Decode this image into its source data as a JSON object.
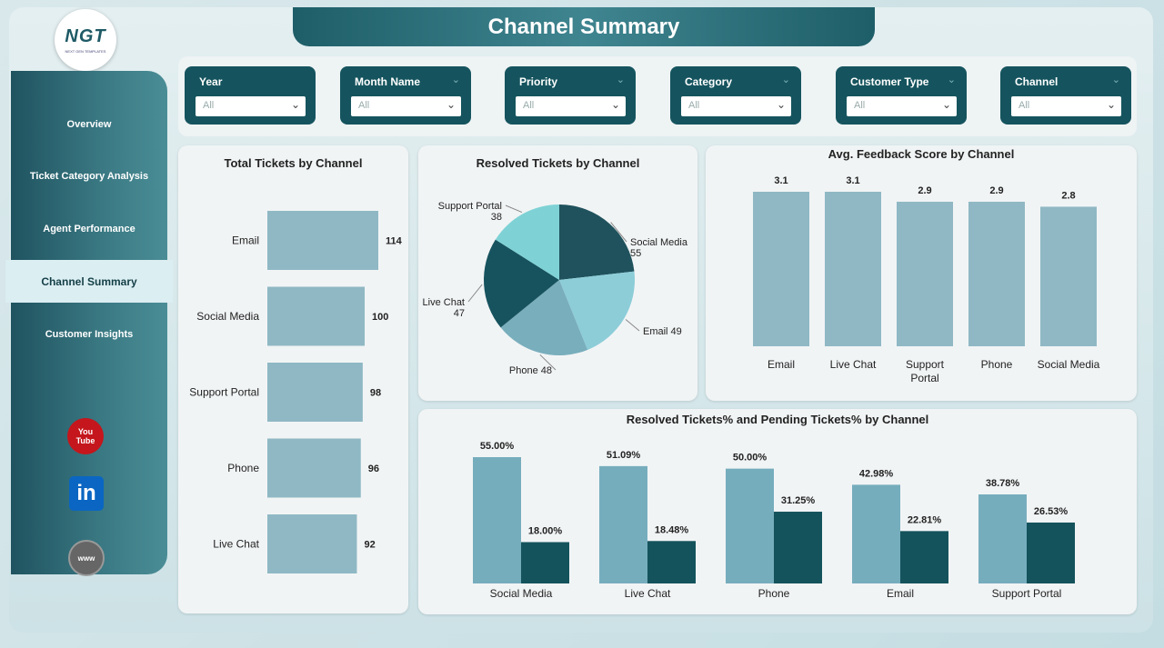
{
  "logo": {
    "text": "NGT",
    "subtext": "NEXT GEN TEMPLATES"
  },
  "title": "Channel Summary",
  "nav": [
    {
      "label": "Overview"
    },
    {
      "label": "Ticket Category Analysis"
    },
    {
      "label": "Agent Performance"
    },
    {
      "label": "Channel Summary"
    },
    {
      "label": "Customer Insights"
    }
  ],
  "social": {
    "youtube": {
      "line1": "You",
      "line2": "Tube",
      "color": "#c4161c"
    },
    "linkedin": {
      "text": "in",
      "color": "#0a66c2"
    },
    "website": {
      "text": "www",
      "color": "#666666"
    }
  },
  "filters": [
    {
      "label": "Year",
      "value": "All"
    },
    {
      "label": "Month Name",
      "value": "All"
    },
    {
      "label": "Priority",
      "value": "All"
    },
    {
      "label": "Category",
      "value": "All"
    },
    {
      "label": "Customer Type",
      "value": "All"
    },
    {
      "label": "Channel",
      "value": "All"
    }
  ],
  "colors": {
    "bar_light": "#8fb8c4",
    "bar_mid": "#76adbd",
    "bar_dark": "#14535c",
    "pie": [
      "#1f525c",
      "#8ccdd8",
      "#79aebc",
      "#17535e",
      "#7ed2d5"
    ]
  },
  "chart_data": [
    {
      "type": "bar",
      "orientation": "horizontal",
      "title": "Total Tickets by Channel",
      "categories": [
        "Email",
        "Social Media",
        "Support Portal",
        "Phone",
        "Live Chat"
      ],
      "values": [
        114,
        100,
        98,
        96,
        92
      ]
    },
    {
      "type": "pie",
      "title": "Resolved Tickets by Channel",
      "labels": [
        "Social Media",
        "Email",
        "Phone",
        "Live Chat",
        "Support Portal"
      ],
      "values": [
        55,
        49,
        48,
        47,
        38
      ]
    },
    {
      "type": "bar",
      "title": "Avg. Feedback Score by Channel",
      "categories": [
        "Email",
        "Live Chat",
        "Support Portal",
        "Phone",
        "Social Media"
      ],
      "values": [
        3.1,
        3.1,
        2.9,
        2.9,
        2.8
      ]
    },
    {
      "type": "bar",
      "title": "Resolved Tickets% and Pending Tickets% by Channel",
      "categories": [
        "Social Media",
        "Live Chat",
        "Phone",
        "Email",
        "Support Portal"
      ],
      "series": [
        {
          "name": "Resolved Tickets%",
          "values": [
            55.0,
            51.09,
            50.0,
            42.98,
            38.78
          ]
        },
        {
          "name": "Pending Tickets%",
          "values": [
            18.0,
            18.48,
            31.25,
            22.81,
            26.53
          ]
        }
      ]
    }
  ]
}
